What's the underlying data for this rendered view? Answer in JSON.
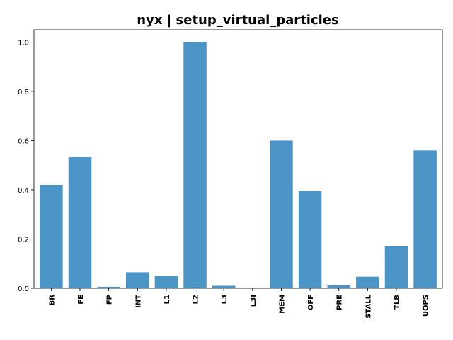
{
  "chart_data": {
    "type": "bar",
    "title": "nyx | setup_virtual_particles",
    "xlabel": "",
    "ylabel": "",
    "categories": [
      "BR",
      "FE",
      "FP",
      "INT",
      "L1",
      "L2",
      "L3",
      "L3I",
      "MEM",
      "OFF",
      "PRE",
      "STALL",
      "TLB",
      "UOPS"
    ],
    "values": [
      0.42,
      0.534,
      0.006,
      0.065,
      0.05,
      1.0,
      0.01,
      0.0,
      0.6,
      0.395,
      0.012,
      0.047,
      0.17,
      0.56
    ],
    "ylim": [
      0,
      1.05
    ],
    "yticks": [
      0.0,
      0.2,
      0.4,
      0.6,
      0.8,
      1.0
    ],
    "ytick_labels": [
      "0.0",
      "0.2",
      "0.4",
      "0.6",
      "0.8",
      "1.0"
    ],
    "bar_color": "#4b94c6",
    "grid": false,
    "legend": "none"
  }
}
